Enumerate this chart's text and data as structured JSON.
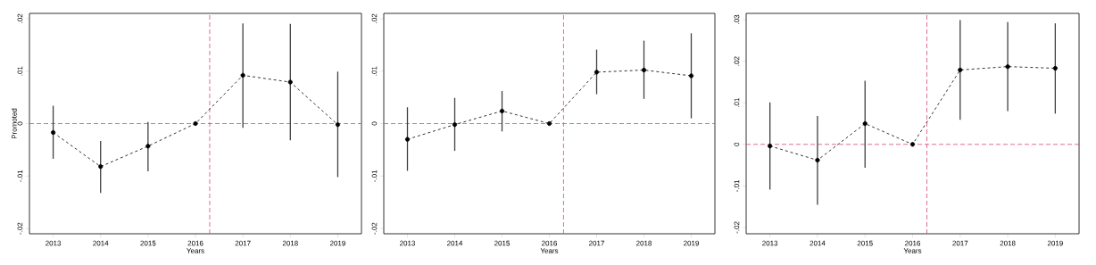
{
  "chart_data": [
    {
      "type": "line",
      "xlabel": "Years",
      "ylabel": "Promoted",
      "x": [
        2013,
        2014,
        2015,
        2016,
        2017,
        2018,
        2019
      ],
      "series": [
        {
          "color": "#000000",
          "values": [
            -0.0017,
            -0.0082,
            -0.0043,
            0,
            0.0092,
            0.0079,
            -0.0002
          ],
          "errors": [
            [
              -0.0067,
              0.0034
            ],
            [
              -0.0132,
              -0.0033
            ],
            [
              -0.0091,
              0.0003
            ],
            null,
            [
              -0.0008,
              0.0191
            ],
            [
              -0.0032,
              0.019
            ],
            [
              -0.0102,
              0.0099
            ]
          ]
        }
      ],
      "xlim": [
        2012.5,
        2019.5
      ],
      "xticks": [
        2013,
        2014,
        2015,
        2016,
        2017,
        2018,
        2019
      ],
      "ylim": [
        -0.021,
        0.021
      ],
      "yticks": [
        {
          "value": -0.02,
          "label": "-.02"
        },
        {
          "value": -0.01,
          "label": "-.01"
        },
        0,
        {
          "value": 0.01,
          "label": ".01"
        },
        {
          "value": 0.02,
          "label": ".02"
        }
      ],
      "ref_lines": [
        {
          "axis": "y",
          "value": 0,
          "color": "#d9477a",
          "line_style": "dashed"
        },
        {
          "axis": "x",
          "value": 2016.3,
          "color": "#d9477a",
          "line_style": "dashed"
        }
      ],
      "marker": "circle",
      "line_style": "dashed"
    },
    {
      "type": "line",
      "xlabel": "Years",
      "x": [
        2013,
        2014,
        2015,
        2016,
        2017,
        2018,
        2019
      ],
      "series": [
        {
          "color": "#000000",
          "values": [
            -0.003,
            -0.0002,
            0.0024,
            0,
            0.0098,
            0.0102,
            0.0091
          ],
          "errors": [
            [
              -0.009,
              0.0031
            ],
            [
              -0.0052,
              0.0049
            ],
            [
              -0.0015,
              0.0062
            ],
            null,
            [
              0.0056,
              0.0141
            ],
            [
              0.0047,
              0.0158
            ],
            [
              0.001,
              0.0172
            ]
          ]
        }
      ],
      "xlim": [
        2012.5,
        2019.5
      ],
      "xticks": [
        2013,
        2014,
        2015,
        2016,
        2017,
        2018,
        2019
      ],
      "ylim": [
        -0.021,
        0.021
      ],
      "yticks": [
        {
          "value": -0.02,
          "label": "-.02"
        },
        {
          "value": -0.01,
          "label": "-.01"
        },
        0,
        {
          "value": 0.01,
          "label": ".01"
        },
        {
          "value": 0.02,
          "label": ".02"
        }
      ],
      "ref_lines": [
        {
          "axis": "y",
          "value": 0,
          "color": "#d9477a",
          "line_style": "dashed"
        },
        {
          "axis": "x",
          "value": 2016.3,
          "color": "#d9477a",
          "line_style": "dashed"
        }
      ],
      "marker": "circle",
      "line_style": "dashed"
    },
    {
      "type": "line",
      "xlabel": "Years",
      "x": [
        2013,
        2014,
        2015,
        2016,
        2017,
        2018,
        2019
      ],
      "series": [
        {
          "color": "#000000",
          "values": [
            -0.0004,
            -0.0038,
            0.005,
            0,
            0.0179,
            0.0187,
            0.0183
          ],
          "errors": [
            [
              -0.0109,
              0.0101
            ],
            [
              -0.0145,
              0.0068
            ],
            [
              -0.0056,
              0.0153
            ],
            null,
            [
              0.0059,
              0.0299
            ],
            [
              0.008,
              0.0294
            ],
            [
              0.0074,
              0.0291
            ]
          ]
        }
      ],
      "xlim": [
        2012.5,
        2019.5
      ],
      "xticks": [
        2013,
        2014,
        2015,
        2016,
        2017,
        2018,
        2019
      ],
      "ylim": [
        -0.0215,
        0.0315
      ],
      "yticks": [
        {
          "value": -0.02,
          "label": "-.02"
        },
        {
          "value": -0.01,
          "label": "-.01"
        },
        0,
        {
          "value": 0.01,
          "label": ".01"
        },
        {
          "value": 0.02,
          "label": ".02"
        },
        {
          "value": 0.03,
          "label": ".03"
        }
      ],
      "ref_lines": [
        {
          "axis": "y",
          "value": 0,
          "color": "#d9477a",
          "line_style": "dashed"
        },
        {
          "axis": "x",
          "value": 2016.3,
          "color": "#d9477a",
          "line_style": "dashed"
        }
      ],
      "marker": "circle",
      "line_style": "dashed"
    }
  ]
}
